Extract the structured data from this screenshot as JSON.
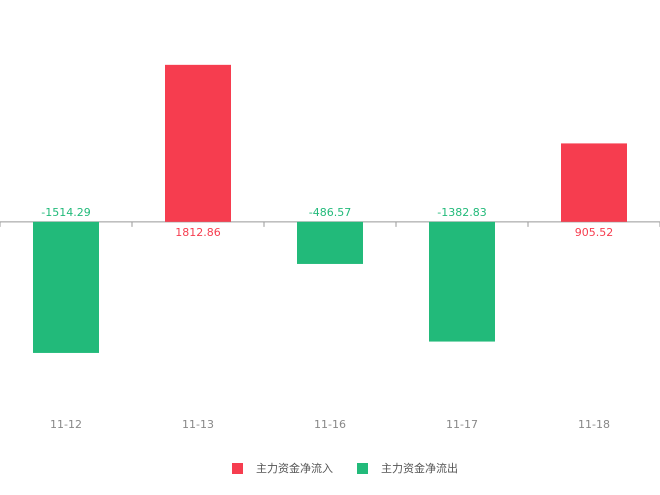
{
  "chart_data": {
    "type": "bar",
    "categories": [
      "11-12",
      "11-13",
      "11-16",
      "11-17",
      "11-18"
    ],
    "series": [
      {
        "name": "主力资金净流入",
        "color": "#f63d4f",
        "values": [
          null,
          1812.86,
          null,
          null,
          905.52
        ]
      },
      {
        "name": "主力资金净流出",
        "color": "#22ba7a",
        "values": [
          -1514.29,
          null,
          -486.57,
          -1382.83,
          null
        ]
      }
    ],
    "ylim": [
      -2000,
      2400
    ],
    "legend": "bottom"
  }
}
